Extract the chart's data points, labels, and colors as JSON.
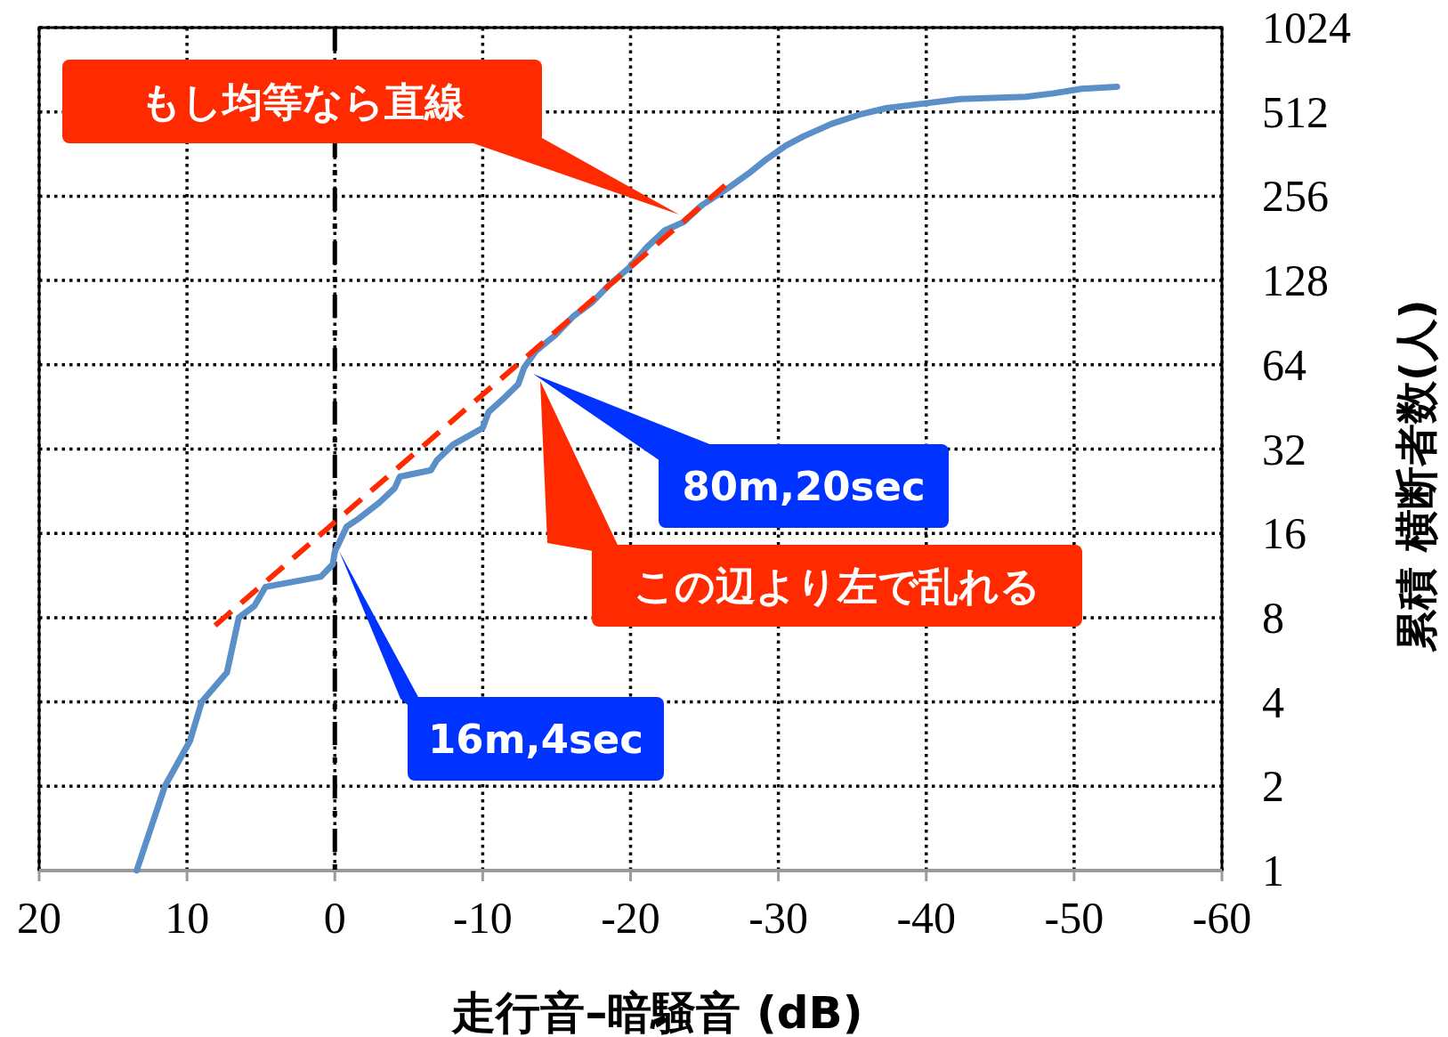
{
  "chart_data": {
    "type": "line",
    "xlabel": "走行音–暗騒音 (dB)",
    "ylabel": "累積 横断者数(人)",
    "log": "y",
    "grid": true,
    "xlim": [
      20,
      -60
    ],
    "xticks": [
      20,
      10,
      0,
      -10,
      -20,
      -30,
      -40,
      -50,
      -60
    ],
    "ylim": [
      1,
      1024
    ],
    "yticks": [
      1,
      2,
      4,
      8,
      16,
      32,
      64,
      128,
      256,
      512,
      1024
    ],
    "ref_lines": [
      {
        "axis": "x",
        "value": 0,
        "color": "#000000",
        "line_style": "dashdot"
      }
    ],
    "series": [
      {
        "color": "#5b8fc7",
        "x": [
          13.4,
          11.5,
          9.8,
          9.0,
          7.3,
          6.5,
          5.45,
          4.7,
          0.95,
          0.14,
          0.0,
          -0.8,
          -1.7,
          -3.0,
          -4.05,
          -4.4,
          -6.5,
          -6.9,
          -8.0,
          -10.0,
          -10.4,
          -11.5,
          -12.4,
          -12.8,
          -13.6,
          -14.9,
          -16.1,
          -17.4,
          -18.6,
          -19.9,
          -21.1,
          -22.3,
          -23.6,
          -24.8,
          -26.7,
          -28.0,
          -29.2,
          -30.5,
          -31.7,
          -33.6,
          -35.5,
          -37.3,
          -39.8,
          -42.3,
          -46.7,
          -48.6,
          -50.5,
          -52.9
        ],
        "values": [
          1,
          2,
          2.9,
          4,
          5.1,
          8,
          8.8,
          10.3,
          11.2,
          12.4,
          13.8,
          16.9,
          18.2,
          20.6,
          23.2,
          25.5,
          26.9,
          29.2,
          33.2,
          38.1,
          43.4,
          49,
          54.5,
          62.5,
          71.7,
          81.6,
          95,
          107,
          124,
          142,
          168,
          193,
          207,
          237,
          276,
          309,
          347,
          388,
          419,
          464,
          501,
          528,
          548,
          569,
          580,
          596,
          619,
          630
        ]
      },
      {
        "color": "#ff2a00",
        "line_style": "dashed",
        "x": [
          8.1,
          -26.4
        ],
        "values": [
          7.5,
          280
        ]
      }
    ],
    "annotations": [
      "もし均等なら直線",
      "80m,20sec",
      "この辺より左で乱れる",
      "16m,4sec"
    ]
  }
}
